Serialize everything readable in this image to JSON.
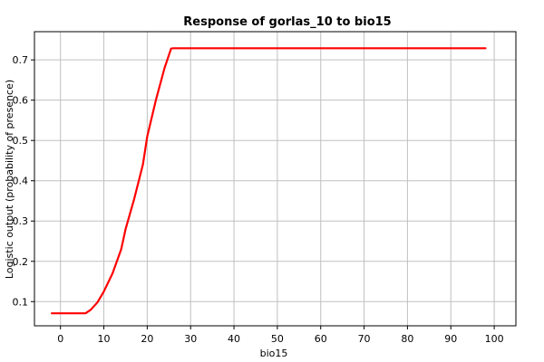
{
  "chart_data": {
    "type": "line",
    "title": "Response of gorlas_10 to bio15",
    "xlabel": "bio15",
    "ylabel": "Logistic output (probability of presence)",
    "xlim": [
      -6,
      105
    ],
    "ylim": [
      0.04,
      0.77
    ],
    "xticks": [
      0,
      10,
      20,
      30,
      40,
      50,
      60,
      70,
      80,
      90,
      100
    ],
    "yticks": [
      0.1,
      0.2,
      0.3,
      0.4,
      0.5,
      0.6,
      0.7
    ],
    "grid": true,
    "series": [
      {
        "color": "#ff0000",
        "x": [
          -2,
          5.8,
          7,
          8.5,
          10,
          12,
          14,
          15,
          17,
          19,
          20,
          22,
          24,
          25.5,
          26,
          98
        ],
        "y": [
          0.071,
          0.071,
          0.08,
          0.098,
          0.125,
          0.17,
          0.23,
          0.28,
          0.355,
          0.44,
          0.51,
          0.6,
          0.68,
          0.728,
          0.729,
          0.729
        ]
      }
    ]
  }
}
